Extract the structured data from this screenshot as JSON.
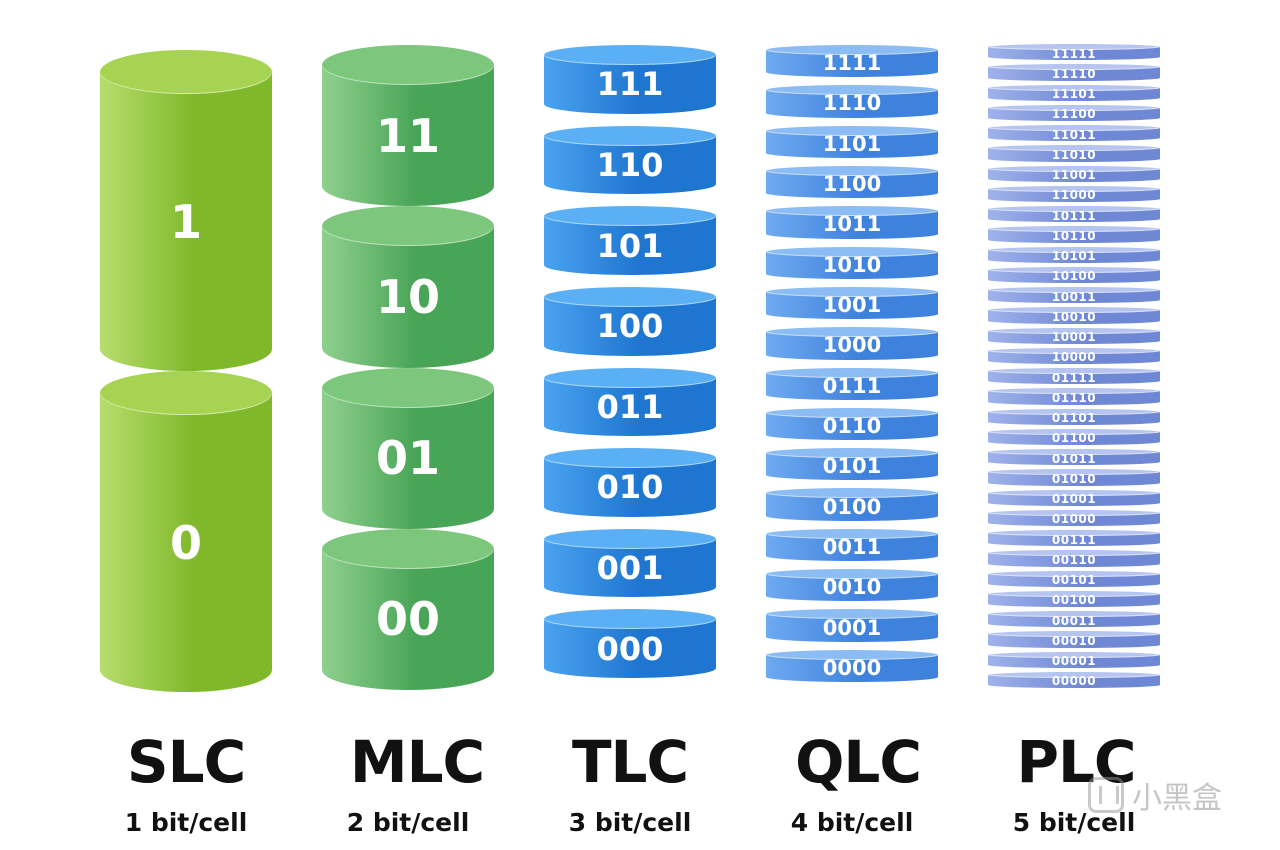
{
  "columns": [
    {
      "id": "slc",
      "name": "SLC",
      "bits_per_cell": "1 bit/cell",
      "color": "#8fc93a",
      "cells": [
        "1",
        "0"
      ]
    },
    {
      "id": "mlc",
      "name": "MLC",
      "bits_per_cell": "2 bit/cell",
      "color": "#5bb46a",
      "cells": [
        "11",
        "10",
        "01",
        "00"
      ]
    },
    {
      "id": "tlc",
      "name": "TLC",
      "bits_per_cell": "3 bit/cell",
      "color": "#2e86de",
      "cells": [
        "111",
        "110",
        "101",
        "100",
        "011",
        "010",
        "001",
        "000"
      ]
    },
    {
      "id": "qlc",
      "name": "QLC",
      "bits_per_cell": "4 bit/cell",
      "color": "#4a90e2",
      "cells": [
        "1111",
        "1110",
        "1101",
        "1100",
        "1011",
        "1010",
        "1001",
        "1000",
        "0111",
        "0110",
        "0101",
        "0100",
        "0011",
        "0010",
        "0001",
        "0000"
      ]
    },
    {
      "id": "plc",
      "name": "PLC",
      "bits_per_cell": "5 bit/cell",
      "color": "#7f96dc",
      "cells": [
        "11111",
        "11110",
        "11101",
        "11100",
        "11011",
        "11010",
        "11001",
        "11000",
        "10111",
        "10110",
        "10101",
        "10100",
        "10011",
        "10010",
        "10001",
        "10000",
        "01111",
        "01110",
        "01101",
        "01100",
        "01011",
        "01010",
        "01001",
        "01000",
        "00111",
        "00110",
        "00101",
        "00100",
        "00011",
        "00010",
        "00001",
        "00000"
      ]
    }
  ],
  "watermark": {
    "text": "小黑盒",
    "logo_icon": "heybox-logo-icon"
  }
}
